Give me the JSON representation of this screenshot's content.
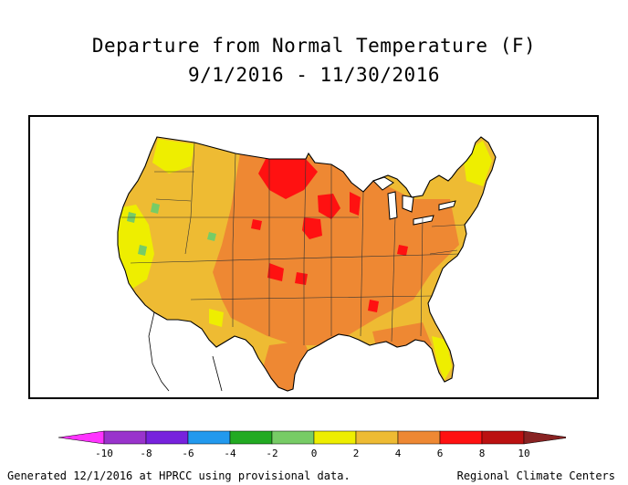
{
  "title_line1": "Departure from Normal Temperature (F)",
  "title_line2": "9/1/2016 - 11/30/2016",
  "legend": {
    "unit": "F",
    "tick_labels": [
      "-10",
      "-8",
      "-6",
      "-4",
      "-2",
      "0",
      "2",
      "4",
      "6",
      "8",
      "10"
    ],
    "bins": [
      {
        "from": -12,
        "to": -10,
        "color": "#ff33ff"
      },
      {
        "from": -10,
        "to": -8,
        "color": "#9933cc"
      },
      {
        "from": -8,
        "to": -6,
        "color": "#7722dd"
      },
      {
        "from": -6,
        "to": -4,
        "color": "#2299ee"
      },
      {
        "from": -4,
        "to": -2,
        "color": "#22aa22"
      },
      {
        "from": -2,
        "to": 0,
        "color": "#77cc66"
      },
      {
        "from": 0,
        "to": 2,
        "color": "#eeee00"
      },
      {
        "from": 2,
        "to": 4,
        "color": "#eebb33"
      },
      {
        "from": 4,
        "to": 6,
        "color": "#ee8833"
      },
      {
        "from": 6,
        "to": 8,
        "color": "#ff1111"
      },
      {
        "from": 8,
        "to": 10,
        "color": "#bb1111"
      },
      {
        "from": 10,
        "to": 12,
        "color": "#882222"
      }
    ]
  },
  "footer": {
    "left": "Generated 12/1/2016 at HPRCC using provisional data.",
    "right": "Regional Climate Centers"
  }
}
